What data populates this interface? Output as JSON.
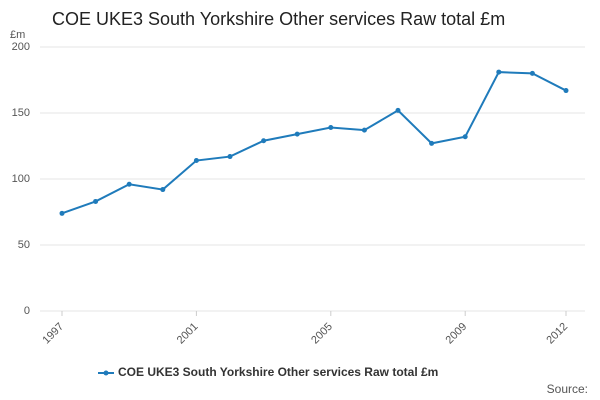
{
  "chart_data": {
    "type": "line",
    "title": "COE UKE3 South Yorkshire Other services Raw total £m",
    "y_unit": "£m",
    "source": "Source:",
    "x": [
      1997,
      1998,
      1999,
      2000,
      2001,
      2002,
      2003,
      2004,
      2005,
      2006,
      2007,
      2008,
      2009,
      2010,
      2011,
      2012
    ],
    "series": [
      {
        "name": "COE UKE3 South Yorkshire Other services Raw total £m",
        "color": "#1f7bbb",
        "values": [
          74,
          83,
          96,
          92,
          114,
          117,
          129,
          134,
          139,
          137,
          152,
          127,
          132,
          181,
          180,
          167
        ]
      }
    ],
    "xlim": [
      1997,
      2012
    ],
    "xticks": [
      1997,
      2001,
      2005,
      2009,
      2012
    ],
    "ylim": [
      0,
      200
    ],
    "yticks": [
      0,
      50,
      100,
      150,
      200
    ],
    "grid": true,
    "legend": "bottom"
  }
}
